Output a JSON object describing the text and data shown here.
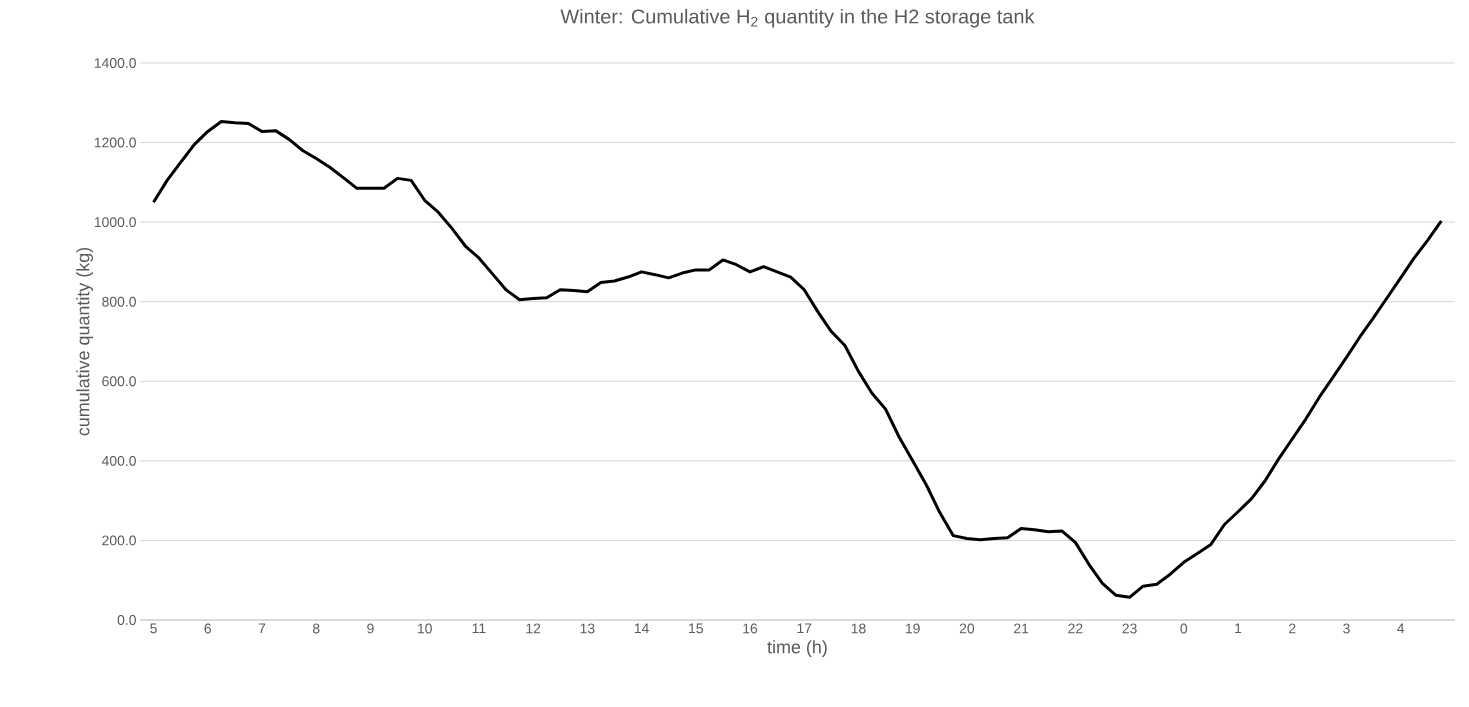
{
  "chart_data": {
    "type": "line",
    "title": "Winter: Cumulative H$_{2}$ quantity in the H2 storage tank",
    "xlabel": "time (h)",
    "ylabel": "cumulative quantity (kg)",
    "categories": [
      "5",
      null,
      null,
      null,
      "6",
      null,
      null,
      null,
      "7",
      null,
      null,
      null,
      "8",
      null,
      null,
      null,
      "9",
      null,
      null,
      null,
      "10",
      null,
      null,
      null,
      "11",
      null,
      null,
      null,
      "12",
      null,
      null,
      null,
      "13",
      null,
      null,
      null,
      "14",
      null,
      null,
      null,
      "15",
      null,
      null,
      null,
      "16",
      null,
      null,
      null,
      "17",
      null,
      null,
      null,
      "18",
      null,
      null,
      null,
      "19",
      null,
      null,
      null,
      "20",
      null,
      null,
      null,
      "21",
      null,
      null,
      null,
      "22",
      null,
      null,
      null,
      "23",
      null,
      null,
      null,
      "0",
      null,
      null,
      null,
      "1",
      null,
      null,
      null,
      "2",
      null,
      null,
      null,
      "3",
      null,
      null,
      null,
      "4",
      null,
      null,
      null
    ],
    "series": [
      {
        "color": "#000000",
        "values": [
          1050,
          1105,
          1150,
          1195,
          1228,
          1253,
          1250,
          1248,
          1228,
          1230,
          1208,
          1180,
          1160,
          1138,
          1112,
          1085,
          1085,
          1085,
          1110,
          1105,
          1055,
          1025,
          985,
          940,
          910,
          870,
          830,
          805,
          808,
          810,
          830,
          828,
          825,
          848,
          852,
          862,
          875,
          868,
          860,
          872,
          880,
          880,
          905,
          893,
          875,
          888,
          875,
          862,
          830,
          775,
          725,
          690,
          625,
          570,
          530,
          460,
          400,
          340,
          270,
          212,
          205,
          202,
          205,
          207,
          230,
          227,
          222,
          224,
          195,
          140,
          92,
          62,
          57,
          85,
          90,
          115,
          145,
          167,
          190,
          240,
          272,
          305,
          350,
          405,
          455,
          505,
          560,
          610,
          660,
          712,
          760,
          810,
          860,
          910,
          955,
          1003
        ]
      }
    ],
    "ylim": [
      0,
      1400
    ],
    "yticks": [
      {
        "value": 0,
        "label": "0.0"
      },
      {
        "value": 200,
        "label": "200.0"
      },
      {
        "value": 400,
        "label": "400.0"
      },
      {
        "value": 600,
        "label": "600.0"
      },
      {
        "value": 800,
        "label": "800.0"
      },
      {
        "value": 1000,
        "label": "1000.0"
      },
      {
        "value": 1200,
        "label": "1200.0"
      },
      {
        "value": 1400,
        "label": "1400.0"
      }
    ],
    "grid": "y",
    "marker": "none",
    "line_style": "solid"
  }
}
